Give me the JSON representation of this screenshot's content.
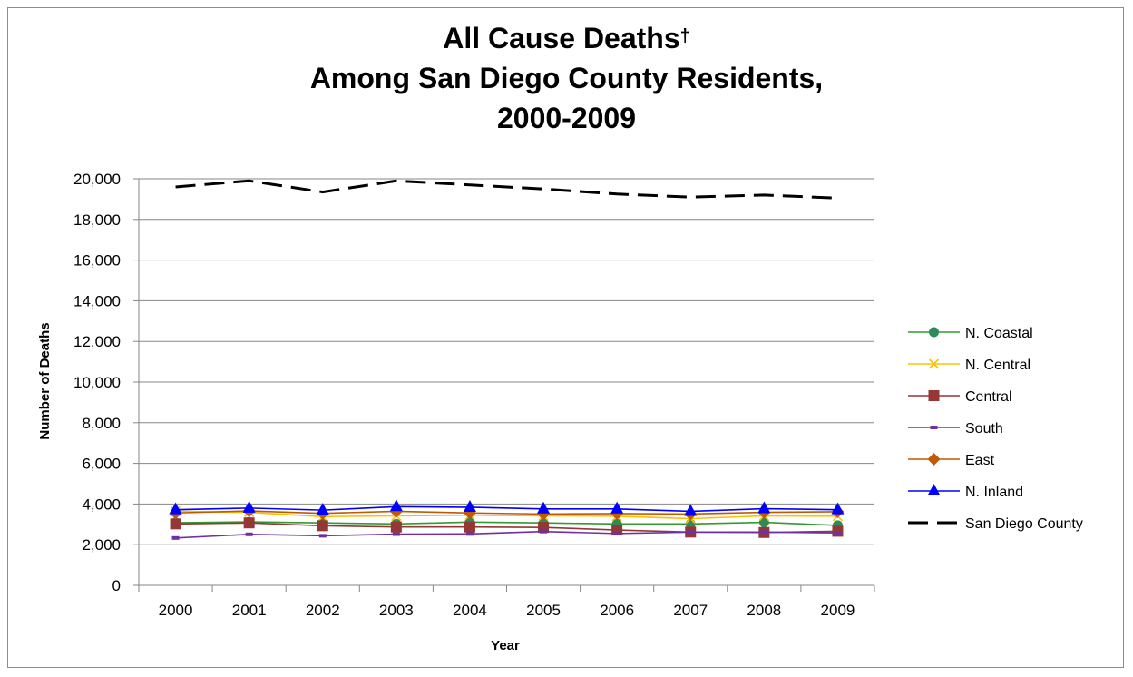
{
  "chart_data": {
    "type": "line",
    "title_lines": [
      "All Cause Deaths",
      "Among San Diego County Residents,",
      "2000-2009"
    ],
    "title_mark": "†",
    "xlabel": "Year",
    "ylabel": "Number of Deaths",
    "x": [
      "2000",
      "2001",
      "2002",
      "2003",
      "2004",
      "2005",
      "2006",
      "2007",
      "2008",
      "2009"
    ],
    "ylim": [
      0,
      20000
    ],
    "yticks": [
      0,
      2000,
      4000,
      6000,
      8000,
      10000,
      12000,
      14000,
      16000,
      18000,
      20000
    ],
    "ytick_labels": [
      "0",
      "2,000",
      "4,000",
      "6,000",
      "8,000",
      "10,000",
      "12,000",
      "14,000",
      "16,000",
      "18,000",
      "20,000"
    ],
    "grid": true,
    "legend_position": "right",
    "series": [
      {
        "name": "N. Coastal",
        "color": "#339933",
        "marker": "circle",
        "dash": false,
        "values": [
          3080,
          3120,
          3070,
          3020,
          3110,
          3070,
          3020,
          3020,
          3100,
          2950
        ]
      },
      {
        "name": "N. Central",
        "color": "#ffc000",
        "marker": "x",
        "dash": false,
        "values": [
          3640,
          3590,
          3380,
          3420,
          3450,
          3420,
          3400,
          3280,
          3420,
          3400
        ]
      },
      {
        "name": "Central",
        "color": "#953735",
        "marker": "square",
        "dash": false,
        "values": [
          3020,
          3070,
          2930,
          2870,
          2870,
          2850,
          2720,
          2620,
          2600,
          2660
        ]
      },
      {
        "name": "South",
        "color": "#7030a0",
        "marker": "dash",
        "dash": false,
        "values": [
          2330,
          2510,
          2440,
          2520,
          2530,
          2650,
          2550,
          2620,
          2620,
          2580
        ]
      },
      {
        "name": "East",
        "color": "#c05a00",
        "marker": "diamond",
        "dash": false,
        "values": [
          3560,
          3660,
          3540,
          3640,
          3560,
          3510,
          3530,
          3510,
          3590,
          3620
        ]
      },
      {
        "name": "N. Inland",
        "color": "#0000ff",
        "marker": "triangle",
        "dash": false,
        "values": [
          3720,
          3800,
          3700,
          3870,
          3840,
          3760,
          3760,
          3640,
          3770,
          3720
        ]
      },
      {
        "name": "San Diego County",
        "color": "#000000",
        "marker": "none",
        "dash": true,
        "values": [
          19600,
          19900,
          19350,
          19900,
          19700,
          19500,
          19250,
          19100,
          19200,
          19050
        ]
      }
    ]
  }
}
